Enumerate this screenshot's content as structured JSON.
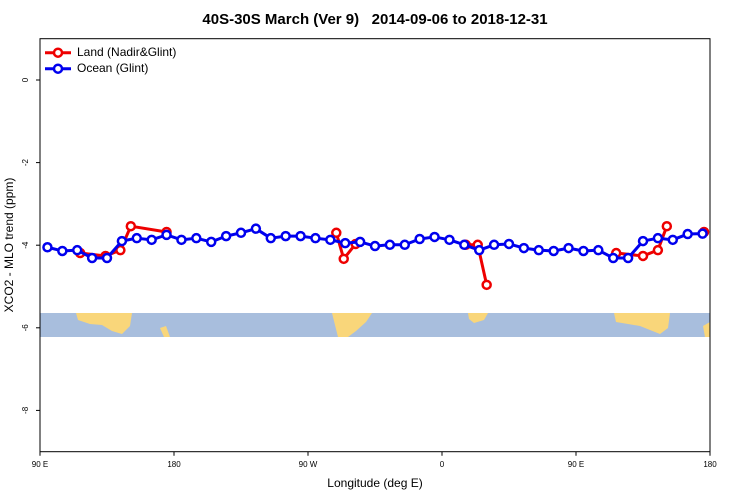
{
  "chart_data": {
    "type": "line",
    "title": "40S-30S March (Ver 9)   2014-09-06 to 2018-12-31",
    "x_label": "Longitude (deg E)",
    "y_label": "XCO2 - MLO trend (ppm)",
    "xlim": [
      90,
      540
    ],
    "ylim": [
      -9,
      1
    ],
    "xticks": [
      {
        "value": 90,
        "label": "90 E"
      },
      {
        "value": 180,
        "label": "180"
      },
      {
        "value": 270,
        "label": "90 W"
      },
      {
        "value": 360,
        "label": "0"
      },
      {
        "value": 450,
        "label": "90 E"
      },
      {
        "value": 540,
        "label": "180"
      }
    ],
    "yticks": [
      0,
      -2,
      -4,
      -6,
      -8
    ],
    "legend": "topleft",
    "series": [
      {
        "name": "Land (Nadir&Glint)",
        "color": "#ee0000",
        "x": [
          117,
          134,
          144,
          151,
          175,
          null,
          289,
          294,
          302,
          null,
          376,
          384,
          390,
          null,
          477,
          495,
          505,
          511,
          null,
          536
        ],
        "values": [
          -4.19,
          -4.26,
          -4.12,
          -3.54,
          -3.68,
          null,
          -3.7,
          -4.33,
          -3.97,
          null,
          -3.99,
          -3.99,
          -4.96,
          null,
          -4.19,
          -4.26,
          -4.12,
          -3.54,
          null,
          -3.68
        ]
      },
      {
        "name": "Ocean (Glint)",
        "color": "#0000ee",
        "x": [
          95,
          105,
          115,
          125,
          135,
          145,
          155,
          165,
          175,
          185,
          195,
          205,
          215,
          225,
          235,
          245,
          255,
          265,
          275,
          285,
          295,
          305,
          315,
          325,
          335,
          345,
          355,
          365,
          375,
          385,
          395,
          405,
          415,
          425,
          435,
          445,
          455,
          465,
          475,
          485,
          495,
          505,
          515,
          525,
          535
        ],
        "values": [
          -4.05,
          -4.14,
          -4.12,
          -4.31,
          -4.31,
          -3.9,
          -3.83,
          -3.87,
          -3.75,
          -3.87,
          -3.83,
          -3.92,
          -3.78,
          -3.7,
          -3.6,
          -3.83,
          -3.78,
          -3.78,
          -3.83,
          -3.87,
          -3.95,
          -3.92,
          -4.02,
          -3.99,
          -3.99,
          -3.85,
          -3.8,
          -3.87,
          -3.99,
          -4.12,
          -3.99,
          -3.97,
          -4.07,
          -4.12,
          -4.14,
          -4.07,
          -4.14,
          -4.12,
          -4.31,
          -4.31,
          -3.9,
          -3.83,
          -3.87,
          -3.73,
          -3.72
        ]
      }
    ]
  }
}
